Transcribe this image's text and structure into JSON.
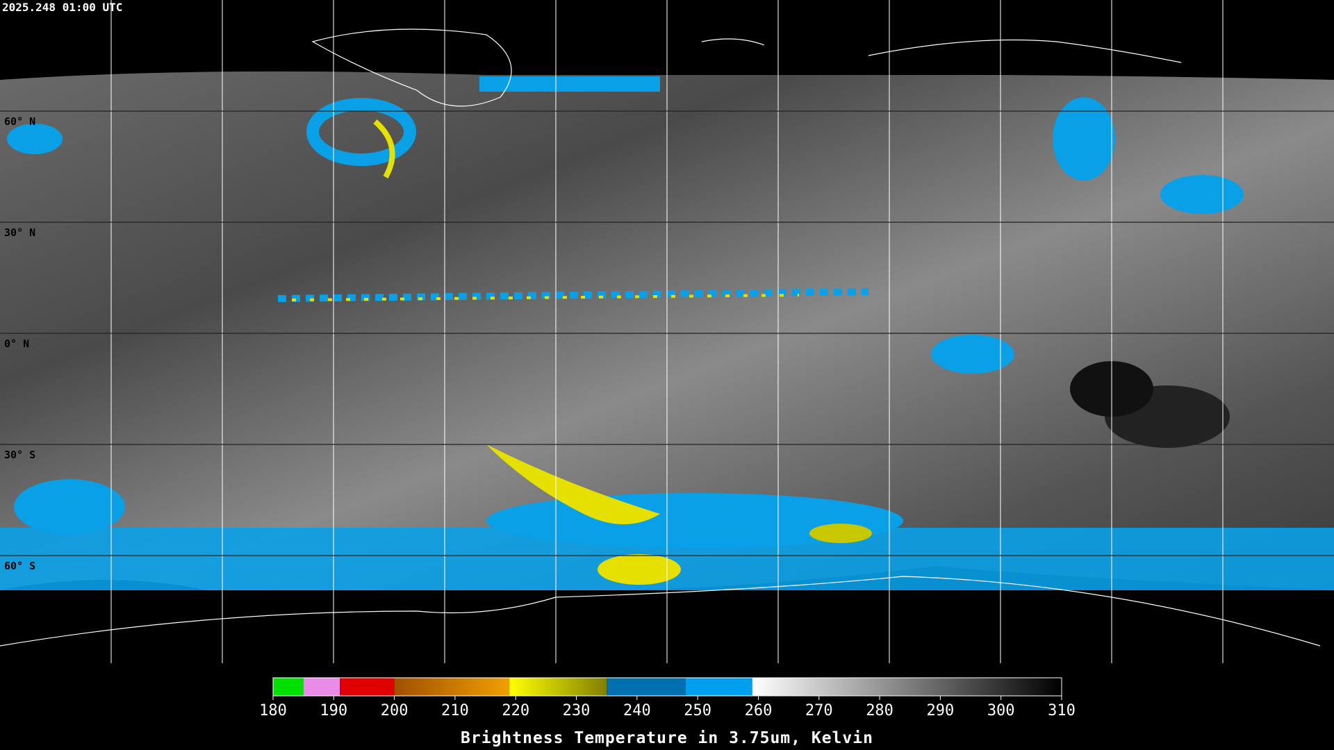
{
  "timestamp": "2025.248 01:00 UTC",
  "lat_labels": [
    "60° N",
    "30° N",
    "0° N",
    "30° S",
    "60° S"
  ],
  "colorbar": {
    "title": "Brightness Temperature in 3.75um, Kelvin",
    "lim": [
      180,
      310
    ],
    "ticks": [
      180,
      190,
      200,
      210,
      220,
      230,
      240,
      250,
      260,
      270,
      280,
      290,
      300,
      310
    ],
    "segments": [
      {
        "from": 180,
        "to": 185,
        "colors": [
          "#00e000",
          "#00e000"
        ]
      },
      {
        "from": 185,
        "to": 191,
        "colors": [
          "#e88ce8",
          "#e88ce8"
        ]
      },
      {
        "from": 191,
        "to": 200,
        "colors": [
          "#e00000",
          "#e00000"
        ]
      },
      {
        "from": 200,
        "to": 219,
        "colors": [
          "#a05000",
          "#f0a000"
        ]
      },
      {
        "from": 219,
        "to": 235,
        "colors": [
          "#ffff00",
          "#808000"
        ]
      },
      {
        "from": 235,
        "to": 248,
        "colors": [
          "#0070b0",
          "#0070b0"
        ]
      },
      {
        "from": 248,
        "to": 259,
        "colors": [
          "#00a0f0",
          "#00a0f0"
        ]
      },
      {
        "from": 259,
        "to": 310,
        "colors": [
          "#ffffff",
          "#000000"
        ]
      }
    ]
  }
}
